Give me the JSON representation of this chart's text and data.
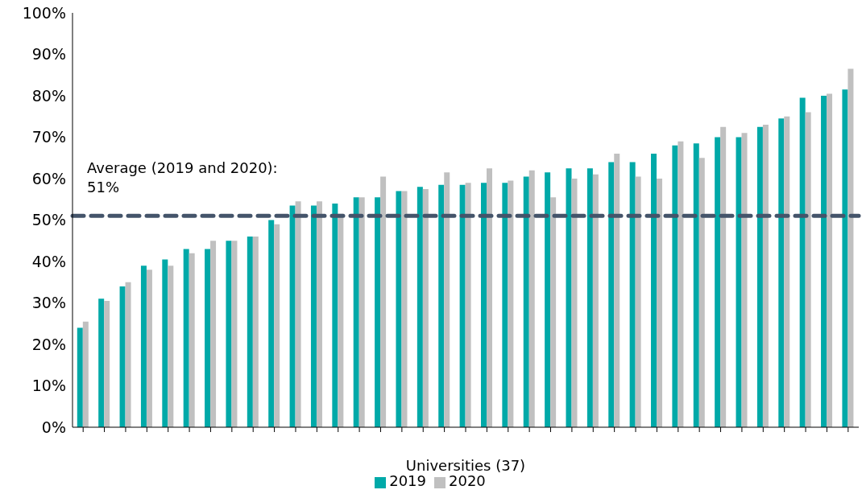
{
  "chart_data": {
    "type": "bar",
    "xlabel": "Universities (37)",
    "categories": [
      null,
      null,
      null,
      null,
      null,
      null,
      null,
      null,
      null,
      null,
      null,
      null,
      null,
      null,
      null,
      null,
      null,
      null,
      null,
      null,
      null,
      null,
      null,
      null,
      null,
      null,
      null,
      null,
      null,
      null,
      null,
      null,
      null,
      null,
      null,
      null,
      null
    ],
    "series": [
      {
        "name": "2019",
        "color": "#00a9a8",
        "values": [
          24,
          31,
          34,
          39,
          40.5,
          43,
          43,
          45,
          46,
          50,
          53.5,
          53.5,
          54,
          55.5,
          55.5,
          57,
          58,
          58.5,
          58.5,
          59,
          59,
          60.5,
          61.5,
          62.5,
          62.5,
          64,
          64,
          66,
          68,
          68.5,
          70,
          70,
          72.5,
          74.5,
          79.5,
          80,
          81.5
        ]
      },
      {
        "name": "2020",
        "color": "#c0c0c0",
        "values": [
          25.5,
          30.5,
          35,
          38,
          39,
          42,
          45,
          45,
          46,
          49,
          54.5,
          54.5,
          51.5,
          55.5,
          60.5,
          57,
          57.5,
          61.5,
          59,
          62.5,
          59.5,
          62,
          55.5,
          60,
          61,
          66,
          60.5,
          60,
          69,
          65,
          72.5,
          71,
          73,
          75,
          76,
          80.5,
          86.5
        ]
      }
    ],
    "ylim": [
      0,
      100
    ],
    "yticks": [
      {
        "value": 0,
        "label": "0%"
      },
      {
        "value": 10,
        "label": "10%"
      },
      {
        "value": 20,
        "label": "20%"
      },
      {
        "value": 30,
        "label": "30%"
      },
      {
        "value": 40,
        "label": "40%"
      },
      {
        "value": 50,
        "label": "50%"
      },
      {
        "value": 60,
        "label": "60%"
      },
      {
        "value": 70,
        "label": "70%"
      },
      {
        "value": 80,
        "label": "80%"
      },
      {
        "value": 90,
        "label": "90%"
      },
      {
        "value": 100,
        "label": "100%"
      }
    ],
    "ref_lines": [
      {
        "axis": "y",
        "value": 51,
        "label": "Average (2019 and 2020): 51%",
        "color": "#44546a",
        "line_style": "dashed"
      }
    ],
    "grid": false,
    "legend": "bottom"
  }
}
